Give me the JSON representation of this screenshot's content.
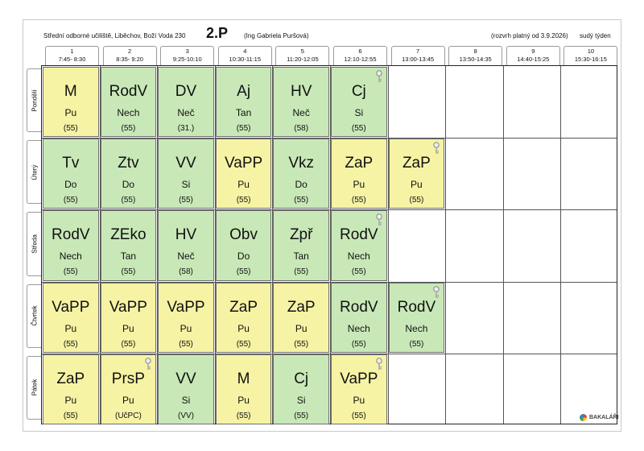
{
  "header": {
    "school": "Střední odborné učiliště, Liběchov, Boží Voda 230",
    "class_name": "2.P",
    "teacher": "(Ing Gabriela Puršová)",
    "validity": "(rozvrh platný od 3.9.2026)",
    "week": "sudý týden"
  },
  "periods": [
    {
      "num": "1",
      "time": "7:45- 8:30"
    },
    {
      "num": "2",
      "time": "8:35- 9:20"
    },
    {
      "num": "3",
      "time": "9:25-10:10"
    },
    {
      "num": "4",
      "time": "10:30-11:15"
    },
    {
      "num": "5",
      "time": "11:20-12:05"
    },
    {
      "num": "6",
      "time": "12:10-12:55"
    },
    {
      "num": "7",
      "time": "13:00-13:45"
    },
    {
      "num": "8",
      "time": "13:50-14:35"
    },
    {
      "num": "9",
      "time": "14:40-15:25"
    },
    {
      "num": "10",
      "time": "15:30-16:15"
    }
  ],
  "days": [
    {
      "name": "Pondělí",
      "lessons": [
        {
          "subject": "M",
          "teacher": "Pu",
          "room": "(55)",
          "color": "#f6f3a4",
          "key": false
        },
        {
          "subject": "RodV",
          "teacher": "Nech",
          "room": "(55)",
          "color": "#c9e8b8",
          "key": false
        },
        {
          "subject": "DV",
          "teacher": "Neč",
          "room": "(31.)",
          "color": "#c9e8b8",
          "key": false
        },
        {
          "subject": "Aj",
          "teacher": "Tan",
          "room": "(55)",
          "color": "#c9e8b8",
          "key": false
        },
        {
          "subject": "HV",
          "teacher": "Neč",
          "room": "(58)",
          "color": "#c9e8b8",
          "key": false
        },
        {
          "subject": "Cj",
          "teacher": "Si",
          "room": "(55)",
          "color": "#c9e8b8",
          "key": true
        }
      ]
    },
    {
      "name": "Úterý",
      "lessons": [
        {
          "subject": "Tv",
          "teacher": "Do",
          "room": "(55)",
          "color": "#c9e8b8",
          "key": false
        },
        {
          "subject": "Ztv",
          "teacher": "Do",
          "room": "(55)",
          "color": "#c9e8b8",
          "key": false
        },
        {
          "subject": "VV",
          "teacher": "Si",
          "room": "(55)",
          "color": "#c9e8b8",
          "key": false
        },
        {
          "subject": "VaPP",
          "teacher": "Pu",
          "room": "(55)",
          "color": "#f6f3a4",
          "key": false
        },
        {
          "subject": "Vkz",
          "teacher": "Do",
          "room": "(55)",
          "color": "#c9e8b8",
          "key": false
        },
        {
          "subject": "ZaP",
          "teacher": "Pu",
          "room": "(55)",
          "color": "#f6f3a4",
          "key": false
        },
        {
          "subject": "ZaP",
          "teacher": "Pu",
          "room": "(55)",
          "color": "#f6f3a4",
          "key": true
        }
      ]
    },
    {
      "name": "Středa",
      "lessons": [
        {
          "subject": "RodV",
          "teacher": "Nech",
          "room": "(55)",
          "color": "#c9e8b8",
          "key": false
        },
        {
          "subject": "ZEko",
          "teacher": "Tan",
          "room": "(55)",
          "color": "#c9e8b8",
          "key": false
        },
        {
          "subject": "HV",
          "teacher": "Neč",
          "room": "(58)",
          "color": "#c9e8b8",
          "key": false
        },
        {
          "subject": "Obv",
          "teacher": "Do",
          "room": "(55)",
          "color": "#c9e8b8",
          "key": false
        },
        {
          "subject": "Zpř",
          "teacher": "Tan",
          "room": "(55)",
          "color": "#c9e8b8",
          "key": false
        },
        {
          "subject": "RodV",
          "teacher": "Nech",
          "room": "(55)",
          "color": "#c9e8b8",
          "key": true
        }
      ]
    },
    {
      "name": "Čtvrtek",
      "lessons": [
        {
          "subject": "VaPP",
          "teacher": "Pu",
          "room": "(55)",
          "color": "#f6f3a4",
          "key": false
        },
        {
          "subject": "VaPP",
          "teacher": "Pu",
          "room": "(55)",
          "color": "#f6f3a4",
          "key": false
        },
        {
          "subject": "VaPP",
          "teacher": "Pu",
          "room": "(55)",
          "color": "#f6f3a4",
          "key": false
        },
        {
          "subject": "ZaP",
          "teacher": "Pu",
          "room": "(55)",
          "color": "#f6f3a4",
          "key": false
        },
        {
          "subject": "ZaP",
          "teacher": "Pu",
          "room": "(55)",
          "color": "#f6f3a4",
          "key": false
        },
        {
          "subject": "RodV",
          "teacher": "Nech",
          "room": "(55)",
          "color": "#c9e8b8",
          "key": false
        },
        {
          "subject": "RodV",
          "teacher": "Nech",
          "room": "(55)",
          "color": "#c9e8b8",
          "key": true
        }
      ]
    },
    {
      "name": "Pátek",
      "lessons": [
        {
          "subject": "ZaP",
          "teacher": "Pu",
          "room": "(55)",
          "color": "#f6f3a4",
          "key": false
        },
        {
          "subject": "PrsP",
          "teacher": "Pu",
          "room": "(UčPC)",
          "color": "#f6f3a4",
          "key": true
        },
        {
          "subject": "VV",
          "teacher": "Si",
          "room": "(VV)",
          "color": "#c9e8b8",
          "key": false
        },
        {
          "subject": "M",
          "teacher": "Pu",
          "room": "(55)",
          "color": "#f6f3a4",
          "key": false
        },
        {
          "subject": "Cj",
          "teacher": "Si",
          "room": "(55)",
          "color": "#c9e8b8",
          "key": false
        },
        {
          "subject": "VaPP",
          "teacher": "Pu",
          "room": "(55)",
          "color": "#f6f3a4",
          "key": true
        }
      ]
    }
  ],
  "footer": {
    "logo_text": "BAKALÁŘI"
  }
}
